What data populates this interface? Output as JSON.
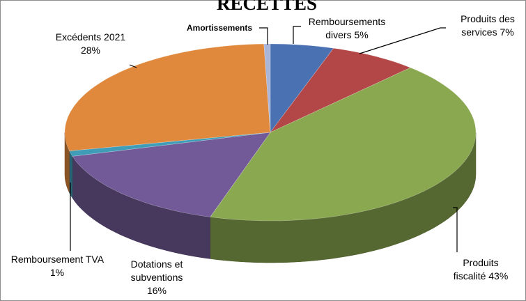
{
  "chart_data": {
    "type": "pie3d",
    "title": "RECETTES",
    "categories": [
      "Remboursements divers",
      "Produits des services",
      "Produits fiscalité",
      "Dotations et subventions",
      "Remboursement TVA",
      "Excédents 2021",
      "Amortissements"
    ],
    "values": [
      5,
      7,
      43,
      16,
      1,
      28,
      0.5
    ],
    "value_labels": [
      "5%",
      "7%",
      "43%",
      "16%",
      "1%",
      "28%",
      null
    ],
    "colors": [
      "#4a72b2",
      "#b34646",
      "#8aa84f",
      "#725a98",
      "#3f9db8",
      "#e0883c",
      "#a9b6d9"
    ]
  }
}
